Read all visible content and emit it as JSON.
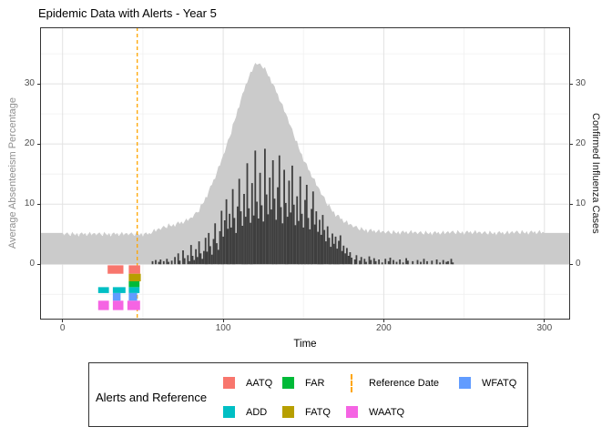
{
  "title": "Epidemic Data with Alerts - Year 5",
  "axes": {
    "left": {
      "title": "Average Absenteeism Percentage",
      "ticks": [
        0,
        10,
        20,
        30
      ]
    },
    "right": {
      "title": "Confirmed Influenza Cases",
      "ticks": [
        0,
        10,
        20,
        30
      ]
    },
    "bottom": {
      "title": "Time",
      "ticks": [
        0,
        100,
        200,
        300
      ]
    }
  },
  "legend": {
    "title": "Alerts and Reference",
    "entries": [
      {
        "label": "AATQ",
        "key": "square",
        "color": "#F8766D"
      },
      {
        "label": "ADD",
        "key": "square",
        "color": "#00BFC4"
      },
      {
        "label": "FAR",
        "key": "square",
        "color": "#00BA38"
      },
      {
        "label": "FATQ",
        "key": "square",
        "color": "#B79F00"
      },
      {
        "label": "Reference Date",
        "key": "dashed-line",
        "color": "#FFA500"
      },
      {
        "label": "WAATQ",
        "key": "square",
        "color": "#F564E3"
      },
      {
        "label": "WFATQ",
        "key": "square",
        "color": "#619CFF"
      }
    ]
  },
  "colors": {
    "background": "#FFFFFF",
    "panel_border": "#333333",
    "grid_major": "#E2E2E2",
    "grid_minor": "#F0F0F0",
    "tick_label": "#4D4D4D",
    "axis_title_left": "#8E8E8E",
    "axis_title_right": "#1A1A1A",
    "area": "#CBCBCB",
    "bars": "#3F3F3F",
    "reference": "#FFA500"
  },
  "chart_data": {
    "type": "mixed",
    "title": "Epidemic Data with Alerts - Year 5",
    "xlabel": "Time",
    "ylabel_left": "Average Absenteeism Percentage",
    "ylabel_right": "Confirmed Influenza Cases",
    "xlim": [
      -14,
      316
    ],
    "ylim": [
      -9.2,
      39.4
    ],
    "x_major": [
      0,
      100,
      200,
      300
    ],
    "x_minor": [
      50,
      150,
      250
    ],
    "y_major": [
      0,
      10,
      20,
      30
    ],
    "y_minor": [
      -5,
      5,
      15,
      25,
      35
    ],
    "x_start": 0,
    "x_step": 1,
    "series": [
      {
        "name": "absenteeism",
        "type": "area",
        "axis": "left",
        "color": "#CBCBCB",
        "values": [
          5.2,
          4.8,
          5.1,
          5.3,
          4.9,
          4.7,
          5.4,
          5,
          4.8,
          5.2,
          4.6,
          5.1,
          5.3,
          4.9,
          5.2,
          4.7,
          5,
          5.4,
          4.8,
          5.1,
          5.2,
          4.8,
          5.1,
          5.3,
          4.9,
          4.7,
          5.4,
          5,
          4.8,
          5.2,
          4.6,
          5.1,
          5.3,
          4.9,
          5.2,
          4.7,
          5,
          5.4,
          4.8,
          5.1,
          5.2,
          4.8,
          5.1,
          5.3,
          4.9,
          4.7,
          5.4,
          5,
          4.8,
          5.2,
          4.6,
          5.1,
          5.3,
          4.9,
          5.2,
          5,
          5.4,
          5.9,
          5.4,
          5.8,
          6,
          5.7,
          6.1,
          6.4,
          6.1,
          6,
          6.8,
          6.4,
          6.3,
          6.7,
          6.2,
          6.8,
          7.1,
          6.7,
          7.1,
          6.7,
          7.1,
          7.6,
          7.2,
          7.6,
          7.8,
          7.7,
          8.3,
          8.7,
          8.6,
          8.7,
          9.9,
          10,
          10.3,
          11.2,
          11.1,
          12.2,
          13,
          13.2,
          14.1,
          14.2,
          15.2,
          16.3,
          16.4,
          17.4,
          18.2,
          18.6,
          19.7,
          20.7,
          21.1,
          21.7,
          23.3,
          23.8,
          24.5,
          25.8,
          26.1,
          27.4,
          28.4,
          28.8,
          29.9,
          30.2,
          31.1,
          32,
          32,
          32.9,
          33.5,
          33.2,
          33.3,
          33.4,
          32.9,
          32.5,
          32.8,
          32,
          31.3,
          31.2,
          30.1,
          30,
          29.6,
          28.6,
          28.3,
          27.2,
          26.9,
          26.6,
          25.4,
          25.1,
          24.5,
          23.4,
          23,
          22.5,
          21.4,
          20.5,
          20.5,
          19.4,
          18.6,
          18.3,
          17.1,
          17,
          16.7,
          15.7,
          15.5,
          14.5,
          14.3,
          14.2,
          13.1,
          12.9,
          12.5,
          11.6,
          11.4,
          11.2,
          10.3,
          9.7,
          10,
          9.3,
          8.7,
          8.8,
          7.9,
          8.2,
          8.2,
          7.5,
          7.6,
          6.9,
          7,
          7.3,
          6.5,
          6.7,
          6.6,
          6.1,
          6.3,
          6.4,
          5.9,
          5.6,
          6.2,
          5.8,
          5.5,
          5.9,
          5.2,
          5.7,
          5.9,
          5.4,
          5.7,
          5.2,
          5.5,
          5.8,
          5.2,
          5.5,
          5.5,
          5.1,
          5.4,
          5.6,
          5.2,
          5,
          5.7,
          5.3,
          5.1,
          5.5,
          4.9,
          5.4,
          5.6,
          5.2,
          5.5,
          5,
          5.3,
          5.7,
          5.1,
          5.4,
          5.4,
          5,
          5.3,
          5.5,
          5.1,
          4.9,
          5.6,
          5.2,
          5,
          5.4,
          4.8,
          5.3,
          5.5,
          5.1,
          5.4,
          4.9,
          5.2,
          5.6,
          5,
          5.3,
          5.5,
          5.1,
          5.4,
          5.6,
          5.2,
          5,
          5.7,
          5.3,
          5.1,
          5.5,
          4.9,
          5.4,
          5.6,
          5.2,
          5.5,
          5,
          5.3,
          5.7,
          5.1,
          5.4,
          5.4,
          5,
          5.3,
          5.5,
          5.1,
          4.9,
          5.6,
          5.2,
          5,
          5.4,
          4.8,
          5.3,
          5.5,
          5.1,
          5.4,
          4.9,
          5.2,
          5.6,
          5,
          5.3,
          5.5,
          5.1,
          5.4,
          5.6,
          5.2,
          5,
          5.7,
          5.3,
          5.1,
          5.5,
          4.9,
          5.4,
          5.6,
          5.2,
          5.5,
          5,
          5.3,
          5.7,
          5.1,
          5.4,
          5.2
        ]
      },
      {
        "name": "influenza_cases",
        "type": "bar",
        "axis": "right",
        "color": "#3F3F3F",
        "values": [
          0,
          0,
          0,
          0,
          0,
          0,
          0,
          0,
          0,
          0,
          0,
          0,
          0,
          0,
          0,
          0,
          0,
          0,
          0,
          0,
          0,
          0,
          0,
          0,
          0,
          0,
          0,
          0,
          0,
          0,
          0,
          0,
          0,
          0,
          0,
          0,
          0,
          0,
          0,
          0,
          0,
          0,
          0,
          0,
          0,
          0,
          0,
          0,
          0,
          0,
          0,
          0,
          0,
          0,
          0,
          0,
          0.5,
          0,
          0.7,
          0,
          0.4,
          0.8,
          0,
          0.5,
          0,
          0.9,
          0.4,
          0,
          0.6,
          0,
          1.2,
          0,
          1.8,
          0.6,
          0,
          2.3,
          1,
          0,
          1.5,
          0.5,
          3.2,
          1.4,
          0.7,
          2.5,
          1.2,
          3.8,
          1.8,
          0.9,
          2.2,
          4.4,
          2.1,
          5.2,
          3,
          1.6,
          4.2,
          6.8,
          3.5,
          2.4,
          5.5,
          8.9,
          4.6,
          7.3,
          10.8,
          5.9,
          8.4,
          6.1,
          12.5,
          7.7,
          5.2,
          9.6,
          14.2,
          8.8,
          6.4,
          11.7,
          7.9,
          16.8,
          9.3,
          6.9,
          13.5,
          8.1,
          18.9,
          10.4,
          7.6,
          15.2,
          9.8,
          7.1,
          19.2,
          11.6,
          8.3,
          14.4,
          9.1,
          17.3,
          10.9,
          7.4,
          12.8,
          18.1,
          9.5,
          6.8,
          15.7,
          10.2,
          7.9,
          13.9,
          8.6,
          16.4,
          9.9,
          6.5,
          11.3,
          7.2,
          14.6,
          8.4,
          6.1,
          10.7,
          13.2,
          7.7,
          5.8,
          9.2,
          12.1,
          6.6,
          8.8,
          5.4,
          7.4,
          4.9,
          8.2,
          5.7,
          3.8,
          6.3,
          4.4,
          2.9,
          5.1,
          3.4,
          4.6,
          2.6,
          3.9,
          4.8,
          2.2,
          3.1,
          1.8,
          2.7,
          1.4,
          2,
          1.1,
          0,
          0.8,
          1.5,
          0,
          0.6,
          1.2,
          0,
          0.9,
          0.4,
          0,
          1.3,
          0.7,
          0,
          1,
          0.5,
          0,
          0.8,
          0,
          0.3,
          0,
          0.9,
          0,
          0.5,
          1.1,
          0,
          0.7,
          0,
          0.4,
          0,
          0.8,
          0,
          0.3,
          0,
          1,
          0.6,
          0,
          0,
          0.5,
          0,
          0,
          0.7,
          0,
          0.4,
          0,
          0.9,
          0,
          0.5,
          0,
          0,
          0.6,
          0,
          0,
          0.8,
          0,
          0.3,
          0,
          0.7,
          0,
          0.4,
          0.5,
          0,
          0.9,
          0.3,
          0,
          0,
          0,
          0,
          0,
          0,
          0,
          0,
          0,
          0,
          0,
          0,
          0,
          0,
          0,
          0,
          0,
          0,
          0,
          0,
          0,
          0,
          0,
          0,
          0,
          0,
          0,
          0,
          0,
          0,
          0,
          0,
          0,
          0,
          0,
          0,
          0,
          0,
          0,
          0,
          0,
          0,
          0,
          0,
          0,
          0,
          0,
          0,
          0,
          0,
          0,
          0,
          0,
          0,
          0,
          0,
          0
        ]
      }
    ],
    "reference_date": {
      "x": 46.5,
      "color": "#FFA500",
      "dash": [
        4,
        3
      ]
    },
    "alerts": [
      {
        "name": "AATQ",
        "color": "#F8766D",
        "y_top": -0.18,
        "y_bottom": -1.59,
        "segments": [
          [
            28.1,
            37.9
          ],
          [
            41.2,
            48.3
          ]
        ]
      },
      {
        "name": "FATQ",
        "color": "#B79F00",
        "y_top": -1.59,
        "y_bottom": -2.84,
        "segments": [
          [
            41.2,
            48.7
          ]
        ]
      },
      {
        "name": "FAR",
        "color": "#00BA38",
        "y_top": -2.84,
        "y_bottom": -3.81,
        "segments": [
          [
            41.2,
            47.9
          ]
        ]
      },
      {
        "name": "ADD",
        "color": "#00BFC4",
        "y_top": -3.81,
        "y_bottom": -4.8,
        "segments": [
          [
            22.2,
            28.9
          ],
          [
            31.3,
            39.2
          ],
          [
            41.2,
            47.9
          ]
        ]
      },
      {
        "name": "WFATQ",
        "color": "#619CFF",
        "y_top": -4.8,
        "y_bottom": -6.07,
        "segments": [
          [
            31.3,
            36.1
          ],
          [
            41.2,
            46.4
          ]
        ]
      },
      {
        "name": "WAATQ",
        "color": "#F564E3",
        "y_top": -6.07,
        "y_bottom": -7.63,
        "segments": [
          [
            22.2,
            28.9
          ],
          [
            31.3,
            37.9
          ],
          [
            40.4,
            48.3
          ]
        ]
      }
    ]
  }
}
